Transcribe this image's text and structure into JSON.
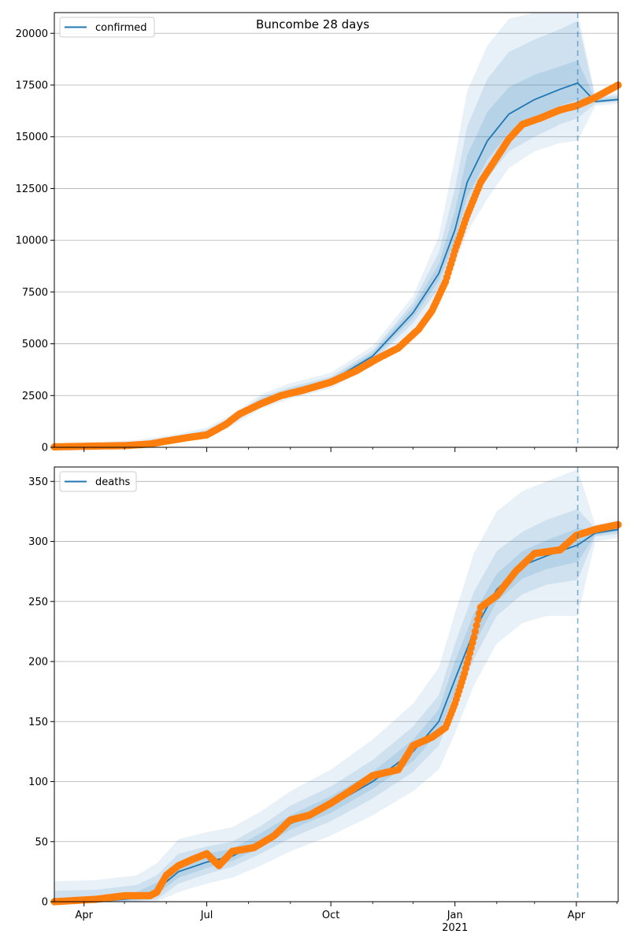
{
  "figure": {
    "title": "Buncombe 28 days"
  },
  "colors": {
    "model": "#1f77b4",
    "observed": "#ff7f0e",
    "band": "#1f77b4",
    "grid": "#b0b0b0"
  },
  "x_axis": {
    "ticks": [
      {
        "date": "2020-04-01",
        "label": "Apr"
      },
      {
        "date": "2020-07-01",
        "label": "Jul"
      },
      {
        "date": "2020-10-01",
        "label": "Oct"
      },
      {
        "date": "2021-01-01",
        "label": "Jan",
        "sublabel": "2021"
      },
      {
        "date": "2021-04-01",
        "label": "Apr"
      }
    ],
    "minor_tick_dates": [
      "2020-05-01",
      "2020-06-01",
      "2020-08-01",
      "2020-09-01",
      "2020-11-01",
      "2020-12-01",
      "2021-02-01",
      "2021-03-01",
      "2021-05-01"
    ]
  },
  "chart_data": [
    {
      "type": "line",
      "legend": "confirmed",
      "legend_position": "top-left",
      "grid": "horizontal",
      "xlim": [
        "2020-03-10",
        "2021-05-02"
      ],
      "ylim": [
        0,
        21000
      ],
      "yticks": [
        0,
        2500,
        5000,
        7500,
        10000,
        12500,
        15000,
        17500,
        20000
      ],
      "ytick_labels": [
        "0",
        "2500",
        "5000",
        "7500",
        "10000",
        "12500",
        "15000",
        "17500",
        "20000"
      ],
      "forecast_start": "2021-04-02",
      "model": {
        "x": [
          "2020-03-10",
          "2020-04-10",
          "2020-05-10",
          "2020-06-10",
          "2020-07-01",
          "2020-07-20",
          "2020-08-10",
          "2020-09-01",
          "2020-10-01",
          "2020-11-01",
          "2020-12-01",
          "2020-12-20",
          "2021-01-01",
          "2021-01-10",
          "2021-01-25",
          "2021-02-10",
          "2021-03-01",
          "2021-03-20",
          "2021-04-02",
          "2021-04-15",
          "2021-05-02"
        ],
        "y": [
          50,
          80,
          150,
          450,
          700,
          1300,
          2200,
          2700,
          3200,
          4400,
          6500,
          8400,
          10500,
          12800,
          14800,
          16100,
          16800,
          17300,
          17600,
          16700,
          16800
        ],
        "bands": [
          {
            "lower": [
              0,
              0,
              0,
              280,
              500,
              1050,
              1850,
              2350,
              2850,
              3950,
              5700,
              7200,
              8800,
              10400,
              12000,
              13500,
              14300,
              14700,
              14800,
              16500,
              16600
            ],
            "upper": [
              200,
              250,
              350,
              650,
              950,
              1600,
              2550,
              3100,
              3600,
              4900,
              7300,
              10200,
              14000,
              17200,
              19400,
              20700,
              21000,
              21000,
              21000,
              17000,
              17100
            ]
          },
          {
            "lower": [
              10,
              20,
              60,
              360,
              580,
              1150,
              2000,
              2500,
              3000,
              4150,
              6000,
              7700,
              9500,
              11300,
              13000,
              14300,
              15000,
              15600,
              15900,
              16600,
              16700
            ],
            "upper": [
              130,
              170,
              260,
              560,
              850,
              1480,
              2420,
              2920,
              3420,
              4680,
              7000,
              9400,
              12500,
              15500,
              17800,
              19100,
              19700,
              20200,
              20600,
              16900,
              17000
            ]
          },
          {
            "lower": [
              30,
              50,
              100,
              410,
              640,
              1230,
              2100,
              2600,
              3100,
              4280,
              6250,
              8050,
              10000,
              12100,
              13900,
              15200,
              15900,
              16500,
              16800,
              16650,
              16750
            ],
            "upper": [
              80,
              120,
              200,
              500,
              780,
              1380,
              2320,
              2820,
              3320,
              4560,
              6780,
              8850,
              11400,
              14100,
              16200,
              17400,
              18000,
              18400,
              18700,
              16800,
              16900
            ]
          }
        ]
      },
      "observed": {
        "points": [
          [
            "2020-03-10",
            20
          ],
          [
            "2020-04-10",
            60
          ],
          [
            "2020-05-01",
            80
          ],
          [
            "2020-05-20",
            160
          ],
          [
            "2020-06-01",
            300
          ],
          [
            "2020-06-15",
            450
          ],
          [
            "2020-07-01",
            600
          ],
          [
            "2020-07-15",
            1100
          ],
          [
            "2020-07-25",
            1600
          ],
          [
            "2020-08-10",
            2100
          ],
          [
            "2020-08-25",
            2500
          ],
          [
            "2020-09-10",
            2750
          ],
          [
            "2020-10-01",
            3150
          ],
          [
            "2020-10-20",
            3700
          ],
          [
            "2020-11-05",
            4300
          ],
          [
            "2020-11-20",
            4800
          ],
          [
            "2020-12-05",
            5700
          ],
          [
            "2020-12-15",
            6600
          ],
          [
            "2020-12-25",
            8000
          ],
          [
            "2021-01-01",
            9500
          ],
          [
            "2021-01-10",
            11200
          ],
          [
            "2021-01-20",
            12800
          ],
          [
            "2021-02-01",
            14000
          ],
          [
            "2021-02-10",
            14900
          ],
          [
            "2021-02-20",
            15600
          ],
          [
            "2021-03-05",
            15900
          ],
          [
            "2021-03-20",
            16300
          ],
          [
            "2021-04-01",
            16500
          ],
          [
            "2021-04-15",
            16900
          ],
          [
            "2021-05-02",
            17500
          ]
        ]
      }
    },
    {
      "type": "line",
      "legend": "deaths",
      "legend_position": "top-left",
      "grid": "horizontal",
      "xlim": [
        "2020-03-10",
        "2021-05-02"
      ],
      "ylim": [
        0,
        362
      ],
      "yticks": [
        0,
        50,
        100,
        150,
        200,
        250,
        300,
        350
      ],
      "ytick_labels": [
        "0",
        "50",
        "100",
        "150",
        "200",
        "250",
        "300",
        "350"
      ],
      "forecast_start": "2021-04-02",
      "model": {
        "x": [
          "2020-03-10",
          "2020-04-10",
          "2020-05-10",
          "2020-05-25",
          "2020-06-10",
          "2020-07-01",
          "2020-07-20",
          "2020-08-10",
          "2020-09-01",
          "2020-10-01",
          "2020-11-01",
          "2020-12-01",
          "2020-12-20",
          "2021-01-01",
          "2021-01-15",
          "2021-02-01",
          "2021-02-20",
          "2021-03-10",
          "2021-04-02",
          "2021-04-15",
          "2021-05-02"
        ],
        "y": [
          0,
          0,
          3,
          10,
          25,
          33,
          38,
          50,
          65,
          80,
          100,
          125,
          150,
          185,
          225,
          260,
          280,
          288,
          297,
          307,
          310
        ],
        "bands": [
          {
            "lower": [
              0,
              0,
              0,
              0,
              8,
              15,
              20,
              30,
              42,
              55,
              72,
              92,
              110,
              140,
              180,
              215,
              232,
              238,
              238,
              300,
              303
            ],
            "upper": [
              17,
              18,
              22,
              32,
              52,
              58,
              62,
              75,
              92,
              110,
              135,
              165,
              195,
              240,
              290,
              325,
              342,
              350,
              360,
              314,
              318
            ]
          },
          {
            "lower": [
              0,
              0,
              0,
              2,
              15,
              23,
              29,
              40,
              53,
              67,
              86,
              108,
              130,
              162,
              202,
              238,
              256,
              264,
              268,
              304,
              306
            ],
            "upper": [
              9,
              10,
              14,
              22,
              40,
              46,
              50,
              63,
              80,
              96,
              118,
              146,
              172,
              215,
              258,
              292,
              308,
              318,
              327,
              311,
              314
            ]
          },
          {
            "lower": [
              0,
              0,
              1,
              6,
              20,
              28,
              34,
              45,
              60,
              74,
              94,
              117,
              141,
              174,
              214,
              250,
              269,
              277,
              283,
              305,
              308
            ],
            "upper": [
              3,
              4,
              8,
              16,
              32,
              40,
              44,
              57,
              72,
              88,
              108,
              135,
              160,
              200,
              240,
              273,
              292,
              301,
              311,
              309,
              312
            ]
          }
        ]
      },
      "observed": {
        "points": [
          [
            "2020-03-10",
            0
          ],
          [
            "2020-04-10",
            2
          ],
          [
            "2020-05-01",
            5
          ],
          [
            "2020-05-20",
            5
          ],
          [
            "2020-05-25",
            8
          ],
          [
            "2020-06-01",
            22
          ],
          [
            "2020-06-10",
            30
          ],
          [
            "2020-06-20",
            35
          ],
          [
            "2020-07-01",
            40
          ],
          [
            "2020-07-10",
            30
          ],
          [
            "2020-07-20",
            42
          ],
          [
            "2020-08-05",
            45
          ],
          [
            "2020-08-20",
            55
          ],
          [
            "2020-09-01",
            68
          ],
          [
            "2020-09-15",
            72
          ],
          [
            "2020-10-01",
            82
          ],
          [
            "2020-10-15",
            92
          ],
          [
            "2020-11-01",
            105
          ],
          [
            "2020-11-20",
            110
          ],
          [
            "2020-12-01",
            130
          ],
          [
            "2020-12-15",
            137
          ],
          [
            "2020-12-25",
            145
          ],
          [
            "2021-01-01",
            165
          ],
          [
            "2021-01-08",
            190
          ],
          [
            "2021-01-15",
            220
          ],
          [
            "2021-01-20",
            245
          ],
          [
            "2021-02-01",
            255
          ],
          [
            "2021-02-15",
            275
          ],
          [
            "2021-03-01",
            290
          ],
          [
            "2021-03-20",
            293
          ],
          [
            "2021-04-01",
            305
          ],
          [
            "2021-04-15",
            310
          ],
          [
            "2021-05-02",
            314
          ]
        ]
      }
    }
  ]
}
